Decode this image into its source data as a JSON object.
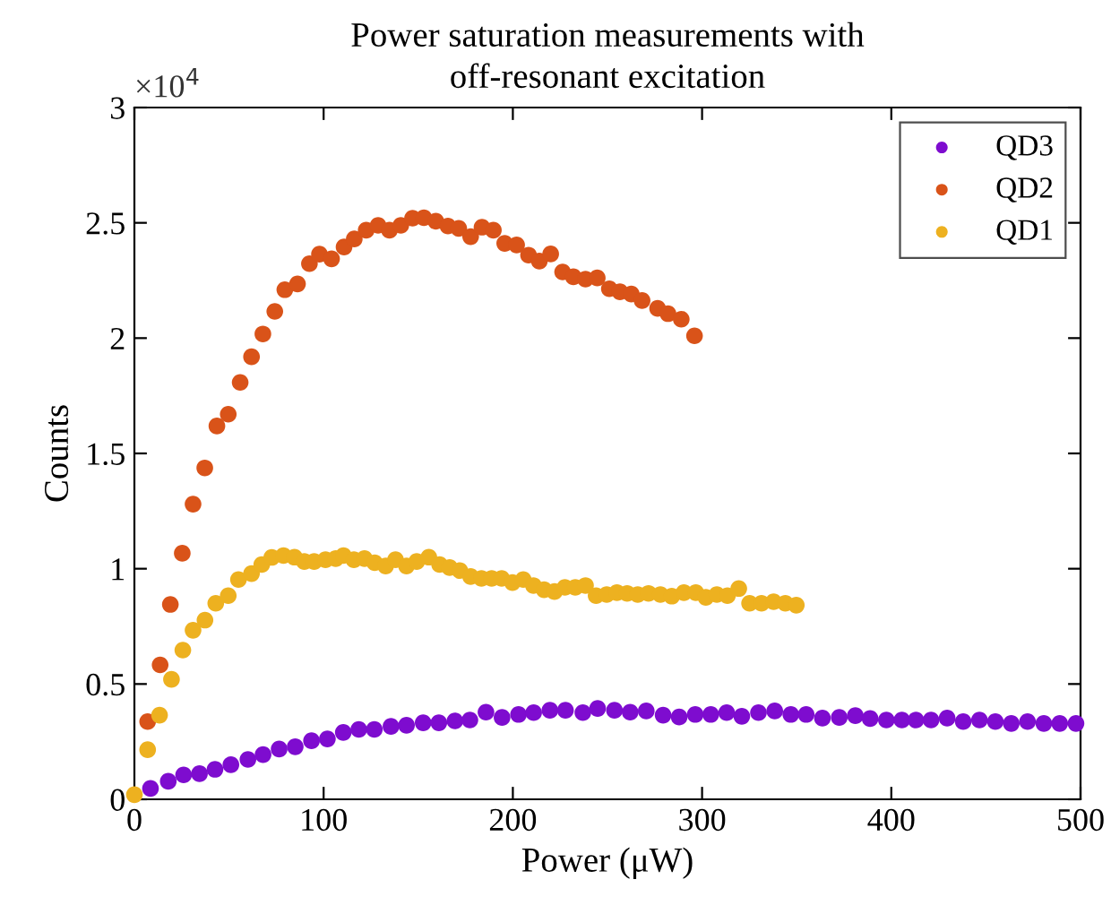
{
  "chart_data": {
    "type": "scatter",
    "title": "Power saturation measurements with\noff-resonant excitation",
    "xlabel": "Power (μW)",
    "ylabel": "Counts",
    "annotations": [
      "×10$^{4}$"
    ],
    "xlim": [
      0,
      500
    ],
    "xticks": [
      0,
      100,
      200,
      300,
      400,
      500
    ],
    "ylim": [
      0,
      3
    ],
    "yticks": [
      0,
      0.5,
      1,
      1.5,
      2,
      2.5,
      3
    ],
    "grid": false,
    "legend": "top right",
    "marker": "circle",
    "series": [
      {
        "name": "QD3",
        "color": "#7e0ccf",
        "x": [
          8.5,
          17.9,
          26,
          34.4,
          42.6,
          51,
          60,
          68,
          76.5,
          85,
          93.6,
          102,
          110.4,
          118.6,
          126.8,
          135.6,
          143.8,
          152.6,
          160.9,
          169.4,
          177.3,
          185.8,
          194.3,
          203,
          211,
          219.6,
          227.8,
          237,
          244.8,
          253.7,
          262,
          270.5,
          279.4,
          287.9,
          296.4,
          304.6,
          313,
          321,
          329.8,
          338.4,
          346.9,
          355,
          363.6,
          372.5,
          381,
          388.8,
          397.4,
          405.6,
          413,
          421,
          429.5,
          438,
          446.6,
          455,
          463.4,
          472,
          480.6,
          489,
          497.6
        ],
        "values": [
          0.047,
          0.078,
          0.106,
          0.111,
          0.13,
          0.15,
          0.173,
          0.194,
          0.218,
          0.228,
          0.254,
          0.262,
          0.29,
          0.303,
          0.303,
          0.316,
          0.321,
          0.332,
          0.332,
          0.34,
          0.344,
          0.378,
          0.355,
          0.368,
          0.376,
          0.386,
          0.386,
          0.376,
          0.394,
          0.386,
          0.378,
          0.383,
          0.365,
          0.357,
          0.368,
          0.368,
          0.376,
          0.36,
          0.376,
          0.383,
          0.368,
          0.368,
          0.352,
          0.355,
          0.363,
          0.35,
          0.344,
          0.344,
          0.344,
          0.344,
          0.352,
          0.337,
          0.344,
          0.337,
          0.329,
          0.337,
          0.329,
          0.329,
          0.329
        ]
      },
      {
        "name": "QD2",
        "color": "#d95319",
        "x": [
          7,
          13.6,
          19,
          25.3,
          31,
          37.2,
          43.6,
          49.6,
          55.9,
          61.9,
          67.9,
          74.2,
          79.5,
          86.2,
          92.5,
          97.8,
          104.2,
          110.8,
          116.2,
          122.5,
          128.8,
          134.8,
          140.8,
          147,
          153,
          159.3,
          165.7,
          171.4,
          177.7,
          183.7,
          189.7,
          195.7,
          202,
          208.3,
          214,
          220,
          226.3,
          232,
          238.4,
          244.6,
          251,
          256.6,
          262.6,
          268.3,
          276.5,
          282,
          289,
          296
        ],
        "values": [
          0.337,
          0.583,
          0.845,
          1.067,
          1.28,
          1.437,
          1.619,
          1.67,
          1.808,
          1.919,
          2.018,
          2.116,
          2.21,
          2.235,
          2.323,
          2.364,
          2.344,
          2.395,
          2.43,
          2.468,
          2.489,
          2.468,
          2.489,
          2.52,
          2.522,
          2.507,
          2.486,
          2.476,
          2.44,
          2.481,
          2.468,
          2.411,
          2.404,
          2.36,
          2.334,
          2.365,
          2.287,
          2.266,
          2.256,
          2.261,
          2.214,
          2.201,
          2.191,
          2.163,
          2.129,
          2.106,
          2.082,
          2.01
        ]
      },
      {
        "name": "QD1",
        "color": "#edb120",
        "x": [
          0,
          7,
          13.3,
          19.6,
          25.6,
          31,
          37.3,
          43,
          49.6,
          55,
          61.9,
          67.3,
          72.6,
          78.8,
          84.6,
          89.8,
          95,
          101,
          106.4,
          110.5,
          116,
          121.6,
          127,
          132.8,
          138,
          143.8,
          149.2,
          155.6,
          161.3,
          166.6,
          172,
          177.7,
          183.4,
          188.8,
          194.1,
          199.8,
          205.5,
          210.9,
          216.5,
          222,
          227.5,
          233,
          238.4,
          244,
          249.6,
          255,
          260.4,
          266,
          271.7,
          278,
          284,
          290.4,
          296.7,
          302,
          307.8,
          313.4,
          319.4,
          325.1,
          331.4,
          337.8,
          344,
          349.8
        ],
        "values": [
          0.02,
          0.215,
          0.365,
          0.52,
          0.647,
          0.733,
          0.777,
          0.85,
          0.883,
          0.953,
          0.979,
          1.018,
          1.049,
          1.057,
          1.05,
          1.031,
          1.031,
          1.039,
          1.044,
          1.057,
          1.039,
          1.044,
          1.026,
          1.012,
          1.039,
          1.012,
          1.031,
          1.05,
          1.018,
          1.005,
          0.992,
          0.966,
          0.958,
          0.958,
          0.958,
          0.94,
          0.953,
          0.927,
          0.909,
          0.901,
          0.919,
          0.919,
          0.927,
          0.883,
          0.888,
          0.896,
          0.893,
          0.888,
          0.893,
          0.888,
          0.881,
          0.896,
          0.896,
          0.876,
          0.888,
          0.883,
          0.914,
          0.85,
          0.85,
          0.857,
          0.85,
          0.842
        ]
      }
    ]
  }
}
